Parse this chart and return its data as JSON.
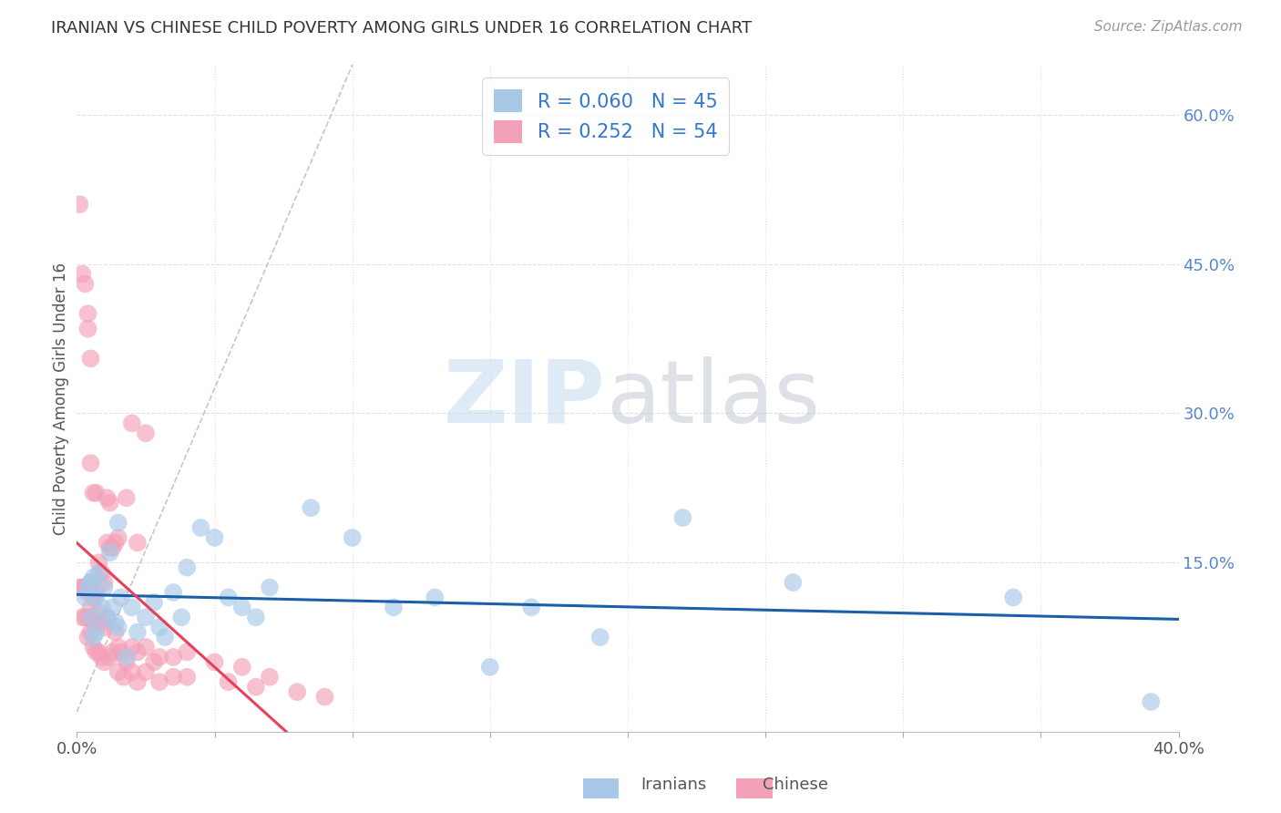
{
  "title": "IRANIAN VS CHINESE CHILD POVERTY AMONG GIRLS UNDER 16 CORRELATION CHART",
  "source": "Source: ZipAtlas.com",
  "ylabel": "Child Poverty Among Girls Under 16",
  "xlim": [
    0.0,
    0.4
  ],
  "ylim": [
    -0.02,
    0.65
  ],
  "legend_iranian": {
    "R": "0.060",
    "N": "45"
  },
  "legend_chinese": {
    "R": "0.252",
    "N": "54"
  },
  "color_iranian": "#a8c8e8",
  "color_chinese": "#f4a0b8",
  "color_iranian_line": "#1a5fa8",
  "color_chinese_line": "#e8405a",
  "color_diagonal": "#d0c0c8",
  "color_grid": "#e0e0e0",
  "color_title": "#333333",
  "color_source": "#999999",
  "color_watermark_zip": "#c8dff0",
  "color_watermark_atlas": "#c8cfd8",
  "color_legend_text": "#3377cc",
  "iranians_x": [
    0.003,
    0.004,
    0.005,
    0.005,
    0.006,
    0.006,
    0.007,
    0.007,
    0.008,
    0.009,
    0.01,
    0.011,
    0.012,
    0.013,
    0.014,
    0.015,
    0.015,
    0.016,
    0.018,
    0.02,
    0.022,
    0.025,
    0.028,
    0.03,
    0.032,
    0.035,
    0.038,
    0.04,
    0.045,
    0.05,
    0.055,
    0.06,
    0.065,
    0.07,
    0.085,
    0.1,
    0.115,
    0.13,
    0.15,
    0.165,
    0.19,
    0.22,
    0.26,
    0.34,
    0.39
  ],
  "iranians_y": [
    0.115,
    0.125,
    0.13,
    0.095,
    0.135,
    0.075,
    0.115,
    0.08,
    0.14,
    0.105,
    0.125,
    0.095,
    0.16,
    0.105,
    0.09,
    0.19,
    0.085,
    0.115,
    0.055,
    0.105,
    0.08,
    0.095,
    0.11,
    0.085,
    0.075,
    0.12,
    0.095,
    0.145,
    0.185,
    0.175,
    0.115,
    0.105,
    0.095,
    0.125,
    0.205,
    0.175,
    0.105,
    0.115,
    0.045,
    0.105,
    0.075,
    0.195,
    0.13,
    0.115,
    0.01
  ],
  "chinese_x": [
    0.001,
    0.002,
    0.002,
    0.003,
    0.003,
    0.004,
    0.004,
    0.004,
    0.005,
    0.005,
    0.005,
    0.006,
    0.006,
    0.006,
    0.007,
    0.007,
    0.007,
    0.008,
    0.008,
    0.009,
    0.009,
    0.01,
    0.01,
    0.011,
    0.011,
    0.012,
    0.012,
    0.013,
    0.014,
    0.015,
    0.015,
    0.016,
    0.017,
    0.018,
    0.02,
    0.02,
    0.022,
    0.022,
    0.025,
    0.025,
    0.028,
    0.03,
    0.03,
    0.035,
    0.035,
    0.04,
    0.04,
    0.05,
    0.055,
    0.06,
    0.065,
    0.07,
    0.08,
    0.09
  ],
  "chinese_y": [
    0.125,
    0.125,
    0.095,
    0.125,
    0.095,
    0.12,
    0.095,
    0.075,
    0.13,
    0.105,
    0.08,
    0.115,
    0.09,
    0.065,
    0.12,
    0.09,
    0.06,
    0.1,
    0.06,
    0.09,
    0.055,
    0.085,
    0.05,
    0.17,
    0.095,
    0.165,
    0.055,
    0.06,
    0.08,
    0.065,
    0.04,
    0.06,
    0.035,
    0.05,
    0.065,
    0.04,
    0.06,
    0.03,
    0.065,
    0.04,
    0.05,
    0.055,
    0.03,
    0.055,
    0.035,
    0.06,
    0.035,
    0.05,
    0.03,
    0.045,
    0.025,
    0.035,
    0.02,
    0.015
  ],
  "chinese_outliers_x": [
    0.001,
    0.002,
    0.003,
    0.004,
    0.004,
    0.005,
    0.005,
    0.006,
    0.007,
    0.008,
    0.009,
    0.01,
    0.011,
    0.012,
    0.013,
    0.014,
    0.015,
    0.018,
    0.02,
    0.022,
    0.025
  ],
  "chinese_outliers_y": [
    0.51,
    0.44,
    0.43,
    0.385,
    0.4,
    0.355,
    0.25,
    0.22,
    0.22,
    0.15,
    0.14,
    0.13,
    0.215,
    0.21,
    0.165,
    0.17,
    0.175,
    0.215,
    0.29,
    0.17,
    0.28
  ],
  "background_color": "#ffffff"
}
